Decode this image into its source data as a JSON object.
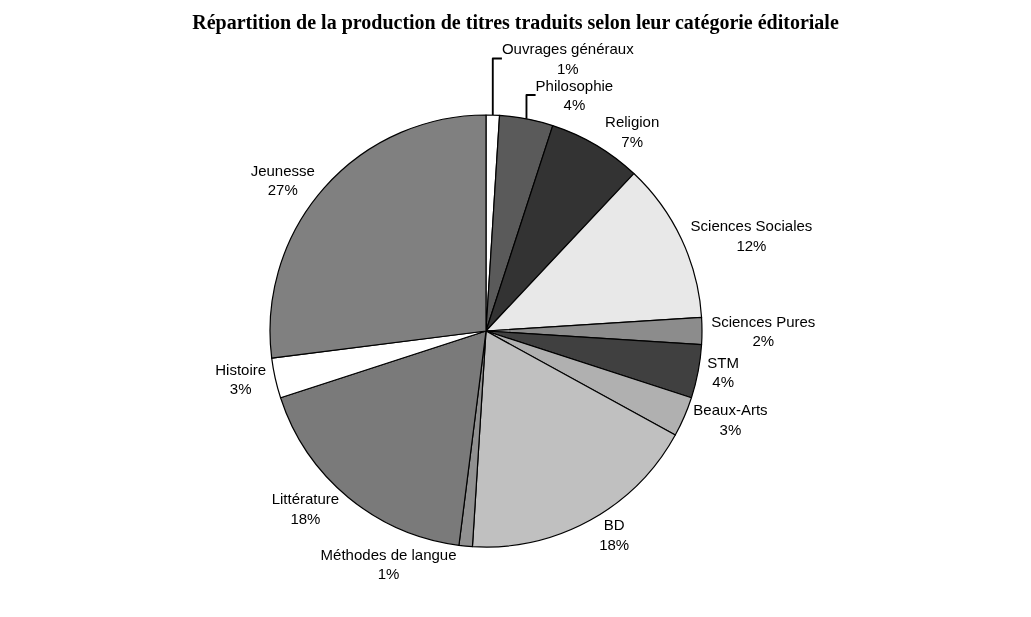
{
  "chart_data": {
    "type": "pie",
    "title": "Répartition de la production de titres traduits selon leur catégorie éditoriale",
    "categories": [
      "Ouvrages généraux",
      "Philosophie",
      "Religion",
      "Sciences Sociales",
      "Sciences Pures",
      "STM",
      "Beaux-Arts",
      "BD",
      "Méthodes de langue",
      "Littérature",
      "Histoire",
      "Jeunesse"
    ],
    "values": [
      1,
      4,
      7,
      12,
      2,
      4,
      3,
      18,
      1,
      18,
      3,
      27
    ],
    "value_labels": [
      "1%",
      "4%",
      "7%",
      "12%",
      "2%",
      "4%",
      "3%",
      "18%",
      "1%",
      "18%",
      "3%",
      "27%"
    ],
    "colors": [
      "#ffffff",
      "#5a5a5a",
      "#333333",
      "#e8e8e8",
      "#8c8c8c",
      "#404040",
      "#b0b0b0",
      "#c0c0c0",
      "#909090",
      "#7a7a7a",
      "#ffffff",
      "#808080"
    ],
    "legend": false
  }
}
